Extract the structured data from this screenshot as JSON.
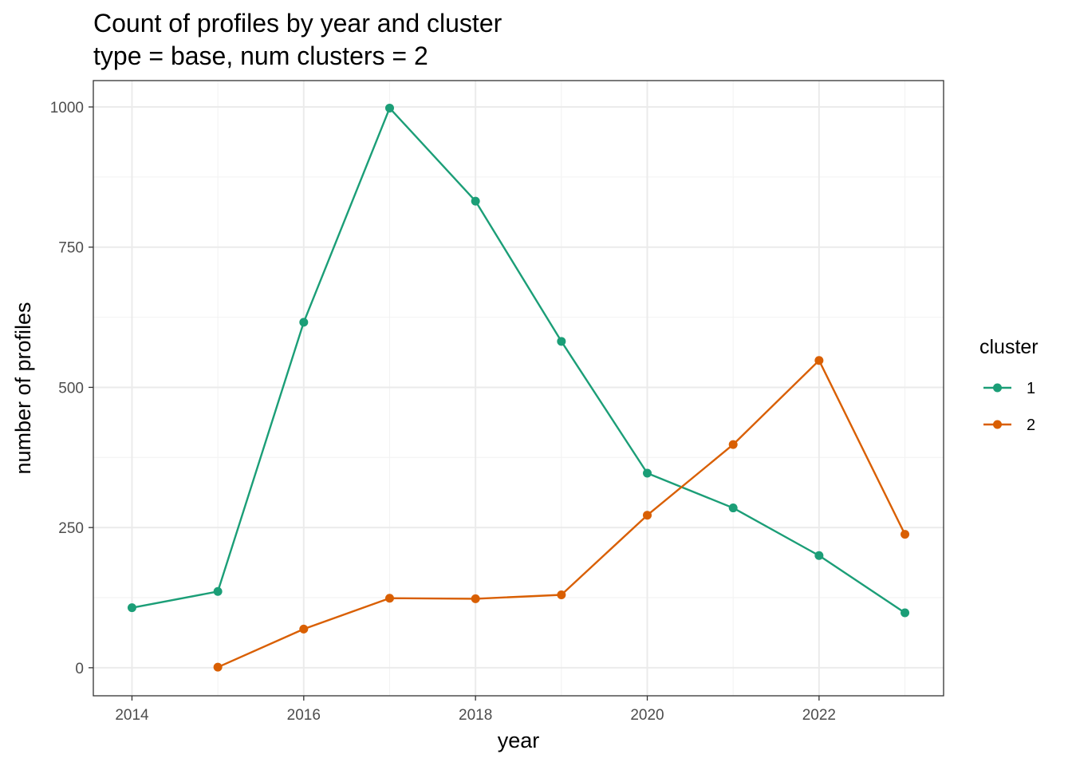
{
  "chart_data": {
    "type": "line",
    "title": "Count of profiles by year and cluster",
    "subtitle": "type = base, num clusters = 2",
    "xlabel": "year",
    "ylabel": "number of profiles",
    "xlim": [
      2013.55,
      2023.45
    ],
    "ylim": [
      -50,
      1047
    ],
    "x_ticks": [
      2014,
      2016,
      2018,
      2020,
      2022
    ],
    "y_ticks": [
      0,
      250,
      500,
      750,
      1000
    ],
    "grid": true,
    "legend": {
      "title": "cluster",
      "placement": "right"
    },
    "series": [
      {
        "name": "1",
        "color": "#1b9e77",
        "x": [
          2014,
          2015,
          2016,
          2017,
          2018,
          2019,
          2020,
          2021,
          2022,
          2023
        ],
        "y": [
          107,
          136,
          616,
          998,
          832,
          582,
          347,
          285,
          200,
          98
        ]
      },
      {
        "name": "2",
        "color": "#d95f02",
        "x": [
          2015,
          2016,
          2017,
          2018,
          2019,
          2020,
          2021,
          2022,
          2023
        ],
        "y": [
          1,
          69,
          124,
          123,
          130,
          272,
          398,
          548,
          238
        ]
      }
    ]
  }
}
